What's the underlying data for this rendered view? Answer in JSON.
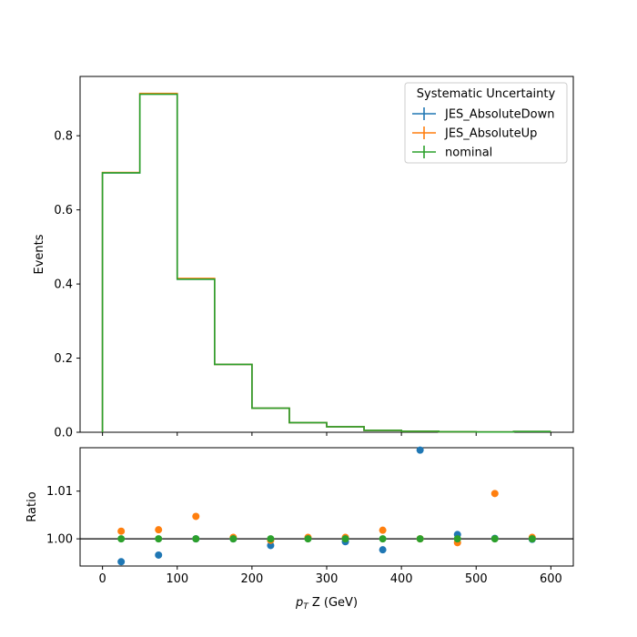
{
  "chart_data": [
    {
      "type": "line",
      "style": "step-histogram",
      "ylabel": "Events",
      "xlim": [
        -30,
        630
      ],
      "ylim": [
        0,
        0.96
      ],
      "bin_edges": [
        0,
        50,
        100,
        150,
        200,
        250,
        300,
        350,
        400,
        450,
        500,
        550,
        600
      ],
      "x_ticks": [
        0,
        100,
        200,
        300,
        400,
        500,
        600
      ],
      "x_tick_labels_shown": false,
      "y_ticks": [
        0.0,
        0.2,
        0.4,
        0.6,
        0.8
      ],
      "y_tick_labels": [
        "0.0",
        "0.2",
        "0.4",
        "0.6",
        "0.8"
      ],
      "legend": {
        "title": "Systematic Uncertainty",
        "placement": "top-right"
      },
      "series": [
        {
          "name": "JES_AbsoluteDown",
          "color": "#1f77b4",
          "values": [
            0.7,
            0.913,
            0.413,
            0.183,
            0.065,
            0.026,
            0.015,
            0.005,
            0.0025,
            0.0015,
            0.0008,
            0.002
          ]
        },
        {
          "name": "JES_AbsoluteUp",
          "color": "#ff7f0e",
          "values": [
            0.701,
            0.914,
            0.415,
            0.183,
            0.065,
            0.026,
            0.015,
            0.005,
            0.0025,
            0.0015,
            0.0008,
            0.002
          ]
        },
        {
          "name": "nominal",
          "color": "#2ca02c",
          "values": [
            0.7,
            0.912,
            0.413,
            0.183,
            0.065,
            0.026,
            0.015,
            0.005,
            0.0025,
            0.0015,
            0.0008,
            0.002
          ]
        }
      ]
    },
    {
      "type": "scatter",
      "xlabel_parts": [
        "p",
        "T",
        " Z (GeV)"
      ],
      "ylabel": "Ratio",
      "xlim": [
        -30,
        630
      ],
      "ylim": [
        0.9943,
        1.0191
      ],
      "x_ticks": [
        0,
        100,
        200,
        300,
        400,
        500,
        600
      ],
      "x_tick_labels": [
        "0",
        "100",
        "200",
        "300",
        "400",
        "500",
        "600"
      ],
      "y_ticks": [
        1.0,
        1.01
      ],
      "y_tick_labels": [
        "1.00",
        "1.01"
      ],
      "reference_line": 1.0,
      "x": [
        25,
        75,
        125,
        175,
        225,
        275,
        325,
        375,
        425,
        475,
        525,
        575
      ],
      "series": [
        {
          "name": "JES_AbsoluteDown",
          "color": "#1f77b4",
          "values": [
            0.9952,
            0.9966,
            1.0,
            1.0,
            0.9986,
            1.0001,
            0.9994,
            0.9977,
            1.0186,
            1.0009,
            1.0001,
            0.9999
          ]
        },
        {
          "name": "JES_AbsoluteUp",
          "color": "#ff7f0e",
          "values": [
            1.0016,
            1.0019,
            1.0047,
            1.0003,
            0.9997,
            1.0003,
            1.0003,
            1.0018,
            1.0,
            0.9992,
            1.0095,
            1.0003
          ]
        },
        {
          "name": "nominal",
          "color": "#2ca02c",
          "values": [
            1.0,
            1.0,
            1.0,
            1.0,
            1.0,
            1.0,
            1.0,
            1.0,
            1.0,
            1.0,
            1.0,
            1.0
          ]
        }
      ]
    }
  ]
}
